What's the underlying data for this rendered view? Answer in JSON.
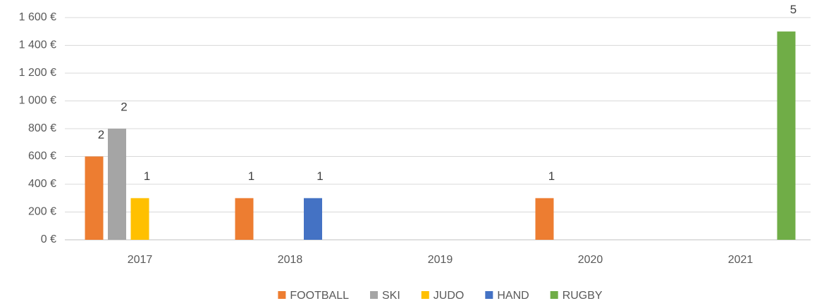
{
  "chart_data": {
    "type": "bar",
    "categories": [
      "2017",
      "2018",
      "2019",
      "2020",
      "2021"
    ],
    "series": [
      {
        "name": "FOOTBALL",
        "color": "#ed7d31",
        "values": [
          600,
          300,
          null,
          300,
          null
        ],
        "counts": [
          2,
          1,
          null,
          1,
          null
        ]
      },
      {
        "name": "SKI",
        "color": "#a5a5a5",
        "values": [
          800,
          null,
          null,
          null,
          null
        ],
        "counts": [
          2,
          null,
          null,
          null,
          null
        ]
      },
      {
        "name": "JUDO",
        "color": "#ffc000",
        "values": [
          300,
          null,
          null,
          null,
          null
        ],
        "counts": [
          1,
          null,
          null,
          null,
          null
        ]
      },
      {
        "name": "HAND",
        "color": "#4472c4",
        "values": [
          null,
          300,
          null,
          null,
          null
        ],
        "counts": [
          null,
          1,
          null,
          null,
          null
        ]
      },
      {
        "name": "RUGBY",
        "color": "#70ad47",
        "values": [
          null,
          null,
          null,
          null,
          1500
        ],
        "counts": [
          null,
          null,
          null,
          null,
          5
        ]
      }
    ],
    "ylim": [
      0,
      1600
    ],
    "yticks": [
      {
        "value": 0,
        "label": "0 €"
      },
      {
        "value": 200,
        "label": "200 €"
      },
      {
        "value": 400,
        "label": "400 €"
      },
      {
        "value": 600,
        "label": "600 €"
      },
      {
        "value": 800,
        "label": "800 €"
      },
      {
        "value": 1000,
        "label": "1 000 €"
      },
      {
        "value": 1200,
        "label": "1 200 €"
      },
      {
        "value": 1400,
        "label": "1 400 €"
      },
      {
        "value": 1600,
        "label": "1 600 €"
      }
    ],
    "grid": true,
    "legend": "bottom"
  }
}
